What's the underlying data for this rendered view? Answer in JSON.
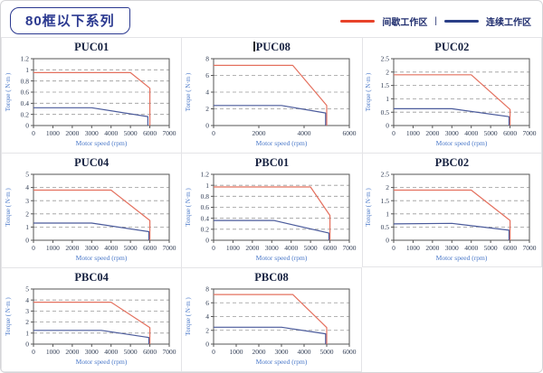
{
  "page": {
    "title_badge": "80框以下系列"
  },
  "legend": {
    "separator": "|",
    "items": [
      {
        "label": "间歇工作区",
        "color": "#e8432a"
      },
      {
        "label": "连续工作区",
        "color": "#2b3f87"
      }
    ]
  },
  "colors": {
    "curve_red": "#e4705e",
    "curve_blue": "#4a5a9b",
    "gridline": "#9a9a9a",
    "axis_box": "#555555",
    "tick_label": "#2f3b52",
    "axis_label_blue": "#4b79c9",
    "title_navy": "#15203f"
  },
  "chart_data": [
    {
      "type": "line",
      "title": "PUC01",
      "has_cursor": false,
      "xlabel": "Motor speed (rpm)",
      "ylabel": "Torque ( N·m )",
      "xlim": [
        0,
        7000
      ],
      "xticks": [
        0,
        1000,
        2000,
        3000,
        4000,
        5000,
        6000,
        7000
      ],
      "ylim": [
        0,
        1.2
      ],
      "yticks": [
        0,
        0.2,
        0.4,
        0.6,
        0.8,
        1,
        1.2
      ],
      "series": [
        {
          "name": "间歇工作区",
          "color_key": "curve_red",
          "points": [
            [
              0,
              0.95
            ],
            [
              5000,
              0.95
            ],
            [
              6000,
              0.67
            ],
            [
              6000,
              0
            ]
          ]
        },
        {
          "name": "连续工作区",
          "color_key": "curve_blue",
          "points": [
            [
              0,
              0.32
            ],
            [
              3000,
              0.32
            ],
            [
              5900,
              0.16
            ],
            [
              5900,
              0
            ]
          ]
        }
      ]
    },
    {
      "type": "line",
      "title": "PUC08",
      "has_cursor": true,
      "xlabel": "Motor speed (rpm)",
      "ylabel": "Torque ( N·m )",
      "xlim": [
        0,
        6000
      ],
      "xticks": [
        0,
        2000,
        4000,
        6000
      ],
      "ylim": [
        0,
        8
      ],
      "yticks": [
        0,
        2,
        4,
        6,
        8
      ],
      "series": [
        {
          "name": "间歇工作区",
          "color_key": "curve_red",
          "points": [
            [
              0,
              7.2
            ],
            [
              3500,
              7.2
            ],
            [
              5000,
              2.4
            ],
            [
              5000,
              0
            ]
          ]
        },
        {
          "name": "连续工作区",
          "color_key": "curve_blue",
          "points": [
            [
              0,
              2.4
            ],
            [
              3000,
              2.4
            ],
            [
              4950,
              1.5
            ],
            [
              4950,
              0
            ]
          ]
        }
      ]
    },
    {
      "type": "line",
      "title": "PUC02",
      "has_cursor": false,
      "xlabel": "Motor speed (rpm)",
      "ylabel": "Torque ( N·m )",
      "xlim": [
        0,
        7000
      ],
      "xticks": [
        0,
        1000,
        2000,
        3000,
        4000,
        5000,
        6000,
        7000
      ],
      "ylim": [
        0,
        2.5
      ],
      "yticks": [
        0,
        0.5,
        1,
        1.5,
        2,
        2.5
      ],
      "series": [
        {
          "name": "间歇工作区",
          "color_key": "curve_red",
          "points": [
            [
              0,
              1.9
            ],
            [
              4000,
              1.9
            ],
            [
              6000,
              0.6
            ],
            [
              6000,
              0
            ]
          ]
        },
        {
          "name": "连续工作区",
          "color_key": "curve_blue",
          "points": [
            [
              0,
              0.63
            ],
            [
              3000,
              0.63
            ],
            [
              5950,
              0.33
            ],
            [
              5950,
              0
            ]
          ]
        }
      ]
    },
    {
      "type": "line",
      "title": "PUC04",
      "has_cursor": false,
      "xlabel": "Motor speed (rpm)",
      "ylabel": "Torque ( N·m )",
      "xlim": [
        0,
        7000
      ],
      "xticks": [
        0,
        1000,
        2000,
        3000,
        4000,
        5000,
        6000,
        7000
      ],
      "ylim": [
        0,
        5
      ],
      "yticks": [
        0,
        1,
        2,
        3,
        4,
        5
      ],
      "series": [
        {
          "name": "间歇工作区",
          "color_key": "curve_red",
          "points": [
            [
              0,
              3.8
            ],
            [
              4000,
              3.8
            ],
            [
              6000,
              1.5
            ],
            [
              6000,
              0
            ]
          ]
        },
        {
          "name": "连续工作区",
          "color_key": "curve_blue",
          "points": [
            [
              0,
              1.3
            ],
            [
              3000,
              1.3
            ],
            [
              5950,
              0.65
            ],
            [
              5950,
              0
            ]
          ]
        }
      ]
    },
    {
      "type": "line",
      "title": "PBC01",
      "has_cursor": false,
      "xlabel": "Motor speed (rpm)",
      "ylabel": "Torque ( N·m )",
      "xlim": [
        0,
        7000
      ],
      "xticks": [
        0,
        1000,
        2000,
        3000,
        4000,
        5000,
        6000,
        7000
      ],
      "ylim": [
        0,
        1.2
      ],
      "yticks": [
        0,
        0.2,
        0.4,
        0.6,
        0.8,
        1,
        1.2
      ],
      "series": [
        {
          "name": "间歇工作区",
          "color_key": "curve_red",
          "points": [
            [
              0,
              0.97
            ],
            [
              5000,
              0.97
            ],
            [
              6000,
              0.45
            ],
            [
              6000,
              0
            ]
          ]
        },
        {
          "name": "连续工作区",
          "color_key": "curve_blue",
          "points": [
            [
              0,
              0.36
            ],
            [
              3100,
              0.36
            ],
            [
              5950,
              0.13
            ],
            [
              5950,
              0
            ]
          ]
        }
      ]
    },
    {
      "type": "line",
      "title": "PBC02",
      "has_cursor": false,
      "xlabel": "Motor speed (rpm)",
      "ylabel": "Torque ( N·m )",
      "xlim": [
        0,
        7000
      ],
      "xticks": [
        0,
        1000,
        2000,
        3000,
        4000,
        5000,
        6000,
        7000
      ],
      "ylim": [
        0,
        2.5
      ],
      "yticks": [
        0,
        0.5,
        1,
        1.5,
        2,
        2.5
      ],
      "series": [
        {
          "name": "间歇工作区",
          "color_key": "curve_red",
          "points": [
            [
              0,
              1.9
            ],
            [
              4000,
              1.9
            ],
            [
              6000,
              0.75
            ],
            [
              6000,
              0
            ]
          ]
        },
        {
          "name": "连续工作区",
          "color_key": "curve_blue",
          "points": [
            [
              0,
              0.62
            ],
            [
              3000,
              0.64
            ],
            [
              5950,
              0.38
            ],
            [
              5950,
              0
            ]
          ]
        }
      ]
    },
    {
      "type": "line",
      "title": "PBC04",
      "has_cursor": false,
      "xlabel": "Motor speed (rpm)",
      "ylabel": "Torque ( N·m )",
      "xlim": [
        0,
        7000
      ],
      "xticks": [
        0,
        1000,
        2000,
        3000,
        4000,
        5000,
        6000,
        7000
      ],
      "ylim": [
        0,
        5
      ],
      "yticks": [
        0,
        1,
        2,
        3,
        4,
        5
      ],
      "series": [
        {
          "name": "间歇工作区",
          "color_key": "curve_red",
          "points": [
            [
              0,
              3.8
            ],
            [
              4000,
              3.8
            ],
            [
              6000,
              1.5
            ],
            [
              6000,
              0
            ]
          ]
        },
        {
          "name": "连续工作区",
          "color_key": "curve_blue",
          "points": [
            [
              0,
              1.25
            ],
            [
              3500,
              1.25
            ],
            [
              5950,
              0.6
            ],
            [
              5950,
              0
            ]
          ]
        }
      ]
    },
    {
      "type": "line",
      "title": "PBC08",
      "has_cursor": false,
      "xlabel": "Motor speed (rpm)",
      "ylabel": "Torque ( N·m )",
      "xlim": [
        0,
        6000
      ],
      "xticks": [
        0,
        1000,
        2000,
        3000,
        4000,
        5000,
        6000
      ],
      "ylim": [
        0,
        8
      ],
      "yticks": [
        0,
        2,
        4,
        6,
        8
      ],
      "series": [
        {
          "name": "间歇工作区",
          "color_key": "curve_red",
          "points": [
            [
              0,
              7.2
            ],
            [
              3500,
              7.2
            ],
            [
              5000,
              2.4
            ],
            [
              5000,
              0
            ]
          ]
        },
        {
          "name": "连续工作区",
          "color_key": "curve_blue",
          "points": [
            [
              0,
              2.45
            ],
            [
              3000,
              2.45
            ],
            [
              4950,
              1.5
            ],
            [
              4950,
              0
            ]
          ]
        }
      ]
    }
  ]
}
